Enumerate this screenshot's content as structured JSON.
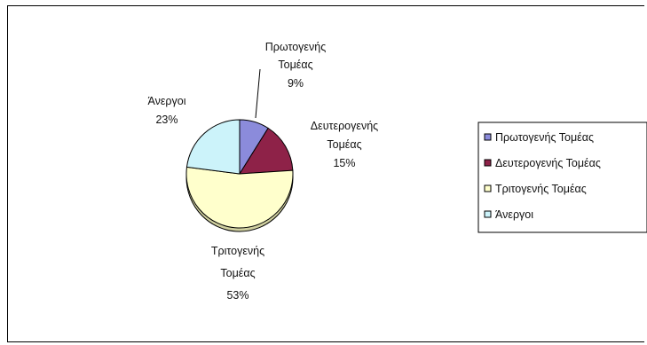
{
  "chart_data": {
    "type": "pie",
    "title": "",
    "legend_position": "right",
    "slices": [
      {
        "name_line1": "Πρωτογενής",
        "name_line2": "Τομέας",
        "legend": "Πρωτογενής Τομέας",
        "value": 9,
        "pct": "9%",
        "color": "#8B8BDB"
      },
      {
        "name_line1": "Δευτερογενής",
        "name_line2": "Τομέας",
        "legend": "Δευτερογενής Τομέας",
        "value": 15,
        "pct": "15%",
        "color": "#8E2248"
      },
      {
        "name_line1": "Τριτογενής",
        "name_line2": "Τομέας",
        "legend": "Τριτογενής Τομέας",
        "value": 53,
        "pct": "53%",
        "color": "#FFFFCC"
      },
      {
        "name_line1": "Άνεργοι",
        "name_line2": "",
        "legend": "Άνεργοι",
        "value": 23,
        "pct": "23%",
        "color": "#CCF3FA"
      }
    ]
  }
}
